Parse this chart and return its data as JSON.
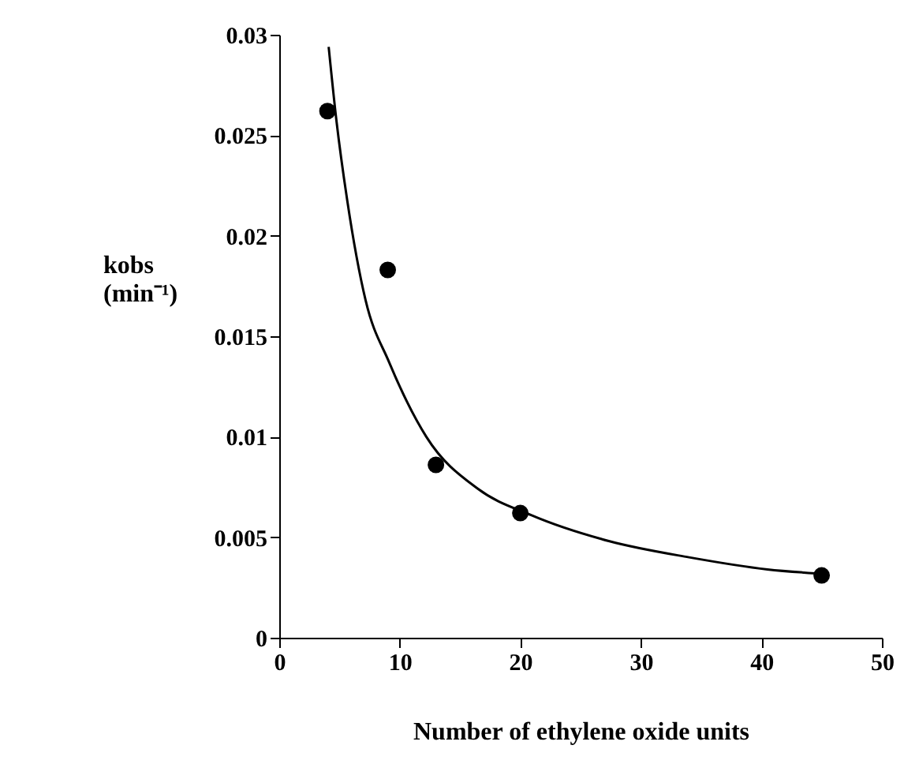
{
  "chart_data": {
    "type": "scatter",
    "xlabel": "Number of ethylene oxide units",
    "ylabel": "kobs\n(min⁻¹)",
    "xlim": [
      0,
      50
    ],
    "xticks": [
      0,
      10,
      20,
      30,
      40,
      50
    ],
    "ylim": [
      0,
      0.03
    ],
    "yticks": [
      {
        "value": 0,
        "label": "0"
      },
      0.005,
      {
        "value": 0.01,
        "label": "0.01"
      },
      0.015,
      {
        "value": 0.02,
        "label": "0.02"
      },
      0.025,
      {
        "value": 0.03,
        "label": "0.03"
      }
    ],
    "grid": false,
    "series": [
      {
        "color": "#000000",
        "marker": "circle",
        "x": [
          4,
          9,
          13,
          20,
          45
        ],
        "values": [
          0.0262,
          0.0183,
          0.0086,
          0.0062,
          0.0031
        ]
      },
      {
        "type": "line",
        "color": "#000000",
        "line_style": "solid",
        "x": [
          4.1,
          4.75,
          5.63,
          7.16,
          9.12,
          12.2,
          16.5,
          20.9,
          27.4,
          34,
          40.5,
          44.5
        ],
        "values": [
          0.0294,
          0.0257,
          0.0218,
          0.0168,
          0.0137,
          0.01,
          0.0074,
          0.0061,
          0.0048,
          0.004,
          0.0034,
          0.0032
        ]
      }
    ]
  }
}
